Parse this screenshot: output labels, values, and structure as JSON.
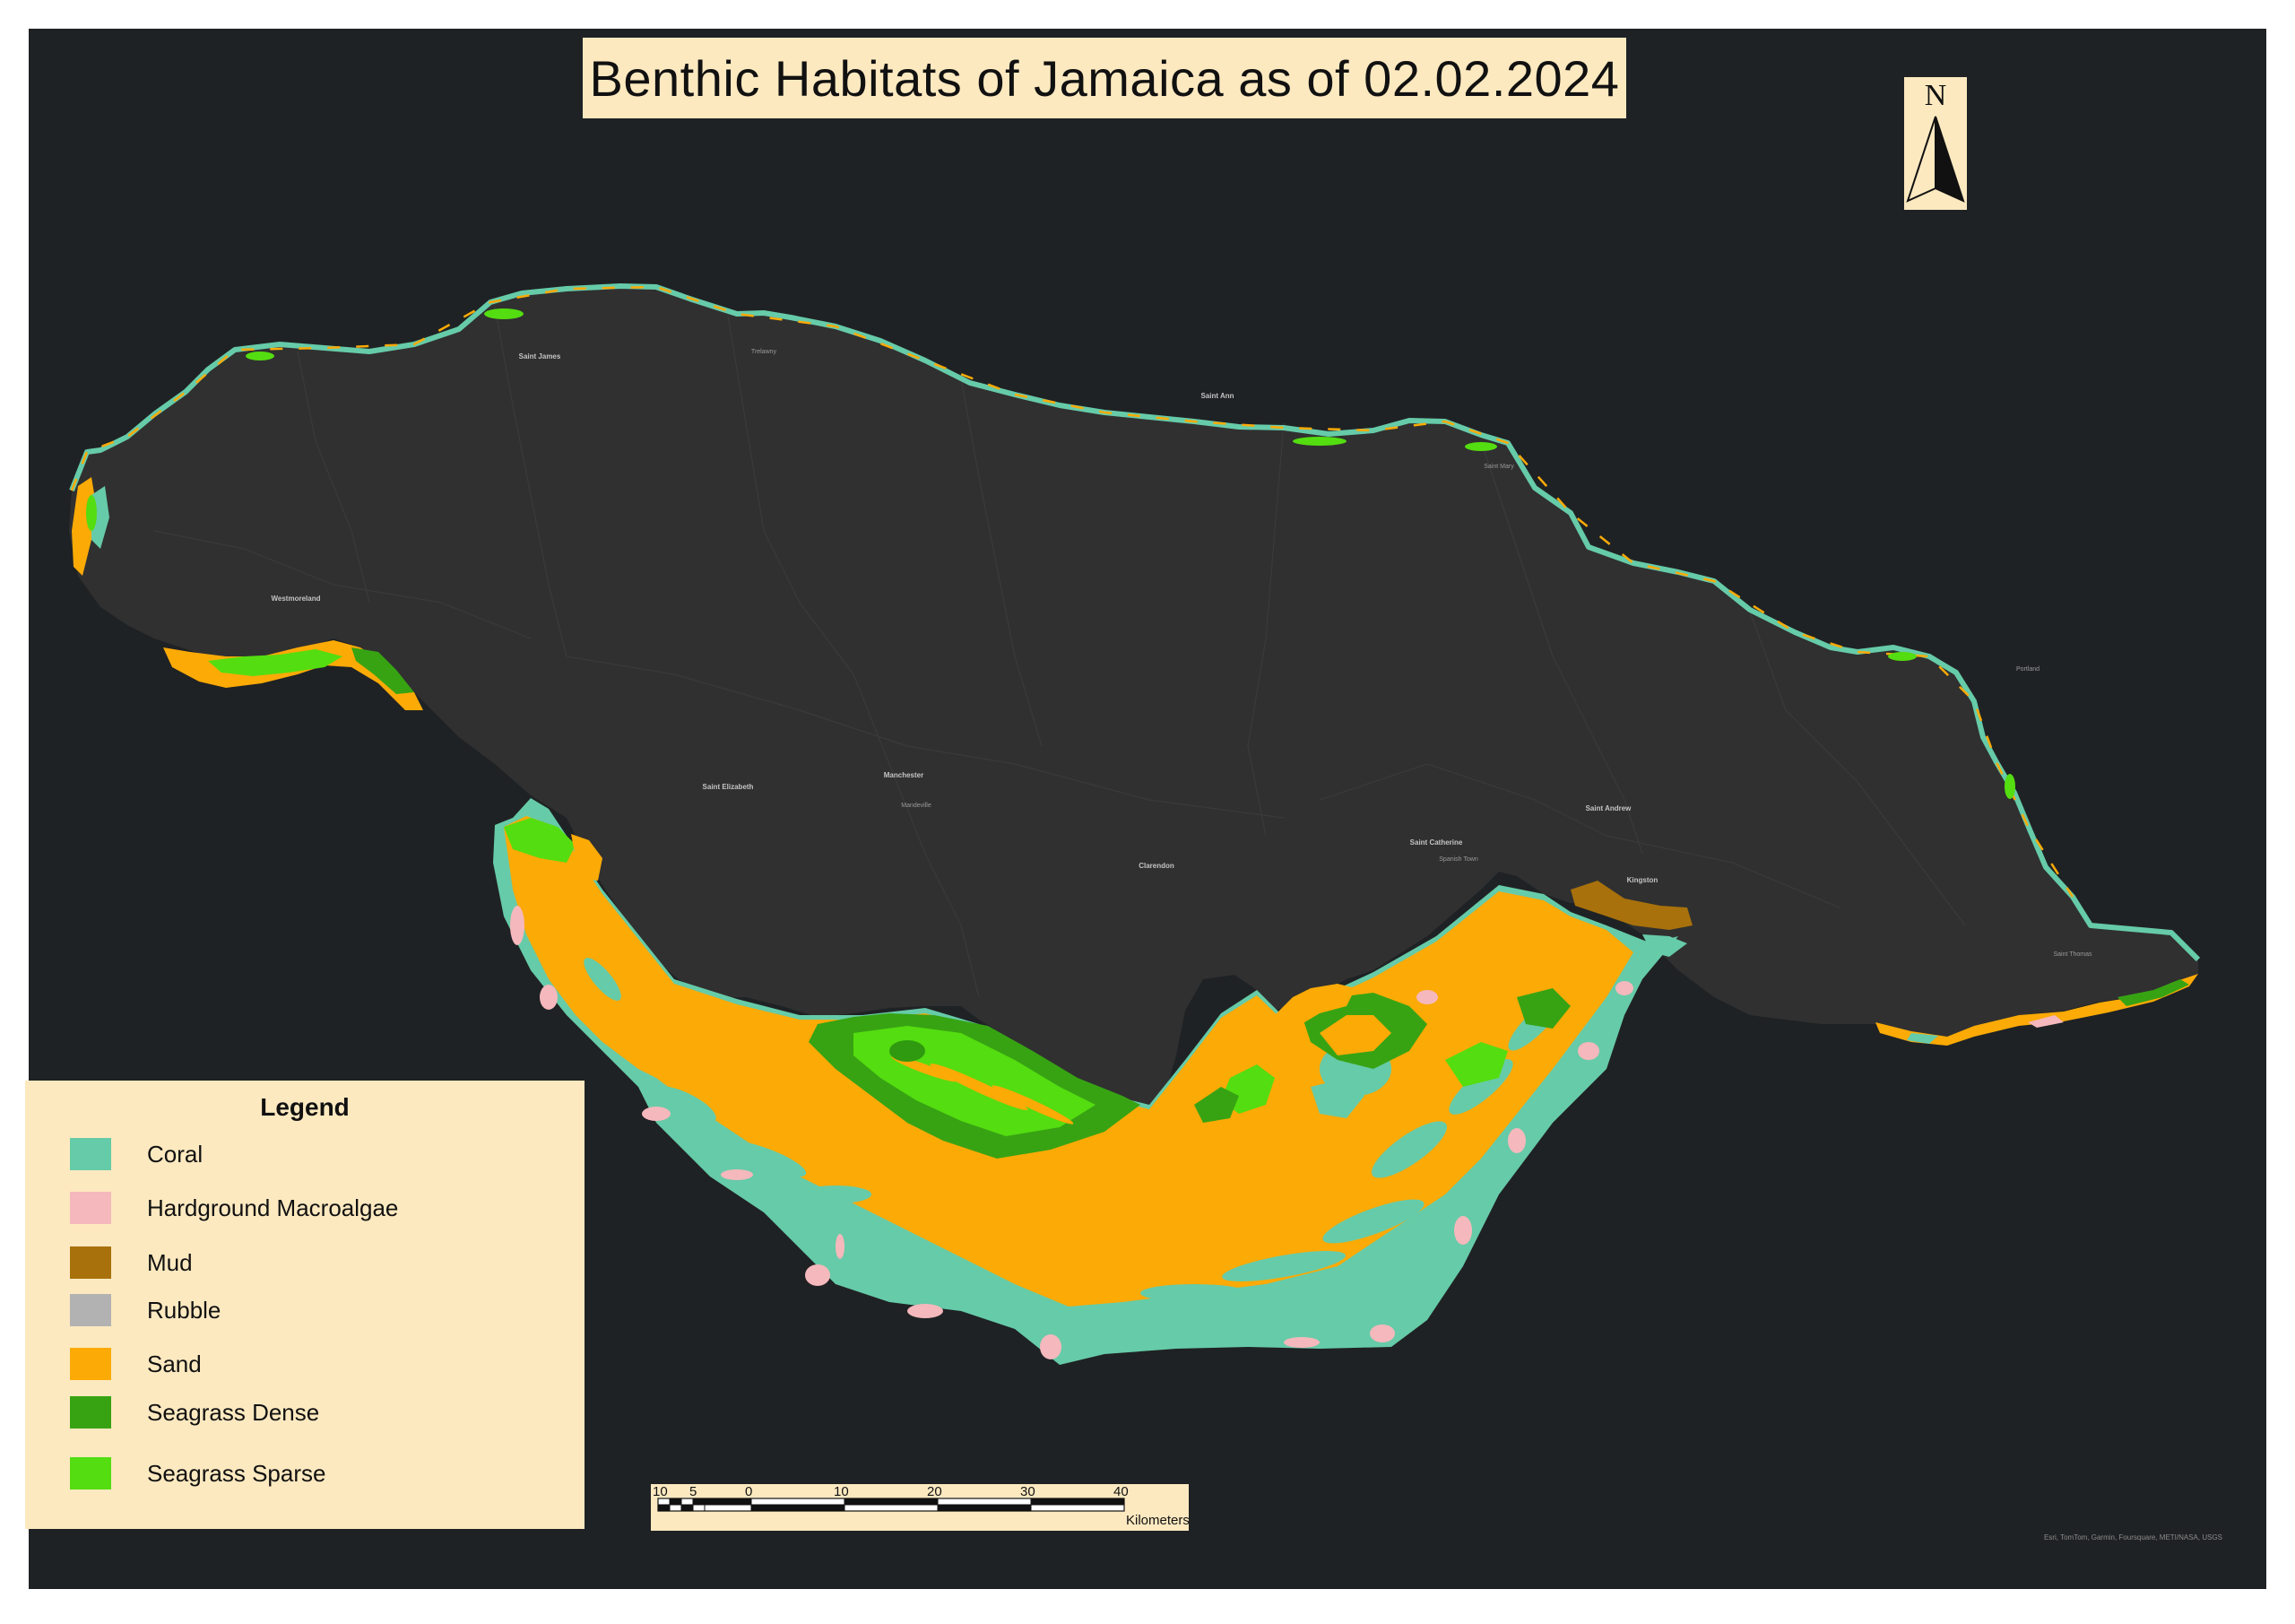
{
  "map": {
    "title": "Benthic Habitats of Jamaica as of 02.02.2024",
    "north_label": "N",
    "credits": "Esri, TomTom, Garmin, Foursquare, METI/NASA, USGS",
    "colors": {
      "background": "#1f2224",
      "land": "#303030",
      "panel": "#fde9c0",
      "coral": "#66cba8",
      "hardground_macroalgae": "#f5b8bc",
      "mud": "#a8710c",
      "rubble": "#b2b2b2",
      "sand": "#fbaa06",
      "seagrass_dense": "#37a313",
      "seagrass_sparse": "#54dd10"
    }
  },
  "legend": {
    "title": "Legend",
    "items": [
      {
        "label": "Coral",
        "color": "#66cba8"
      },
      {
        "label": "Hardground Macroalgae",
        "color": "#f5b8bc"
      },
      {
        "label": "Mud",
        "color": "#a8710c"
      },
      {
        "label": "Rubble",
        "color": "#b2b2b2"
      },
      {
        "label": "Sand",
        "color": "#fbaa06"
      },
      {
        "label": "Seagrass Dense",
        "color": "#37a313"
      },
      {
        "label": "Seagrass Sparse",
        "color": "#54dd10"
      }
    ]
  },
  "scalebar": {
    "ticks": [
      "10",
      "5",
      "0",
      "10",
      "20",
      "30",
      "40"
    ],
    "unit": "Kilometers"
  },
  "places": {
    "saint_james": "Saint James",
    "trelawny": "Trelawny",
    "saint_ann": "Saint Ann",
    "westmoreland": "Westmoreland",
    "saint_elizabeth": "Saint Elizabeth",
    "manchester": "Manchester",
    "mandeville": "Mandeville",
    "clarendon": "Clarendon",
    "saint_catherine": "Saint Catherine",
    "spanish_town": "Spanish Town",
    "saint_andrew": "Saint Andrew",
    "kingston": "Kingston",
    "saint_thomas": "Saint Thomas",
    "saint_mary": "Saint Mary",
    "portland": "Portland"
  }
}
